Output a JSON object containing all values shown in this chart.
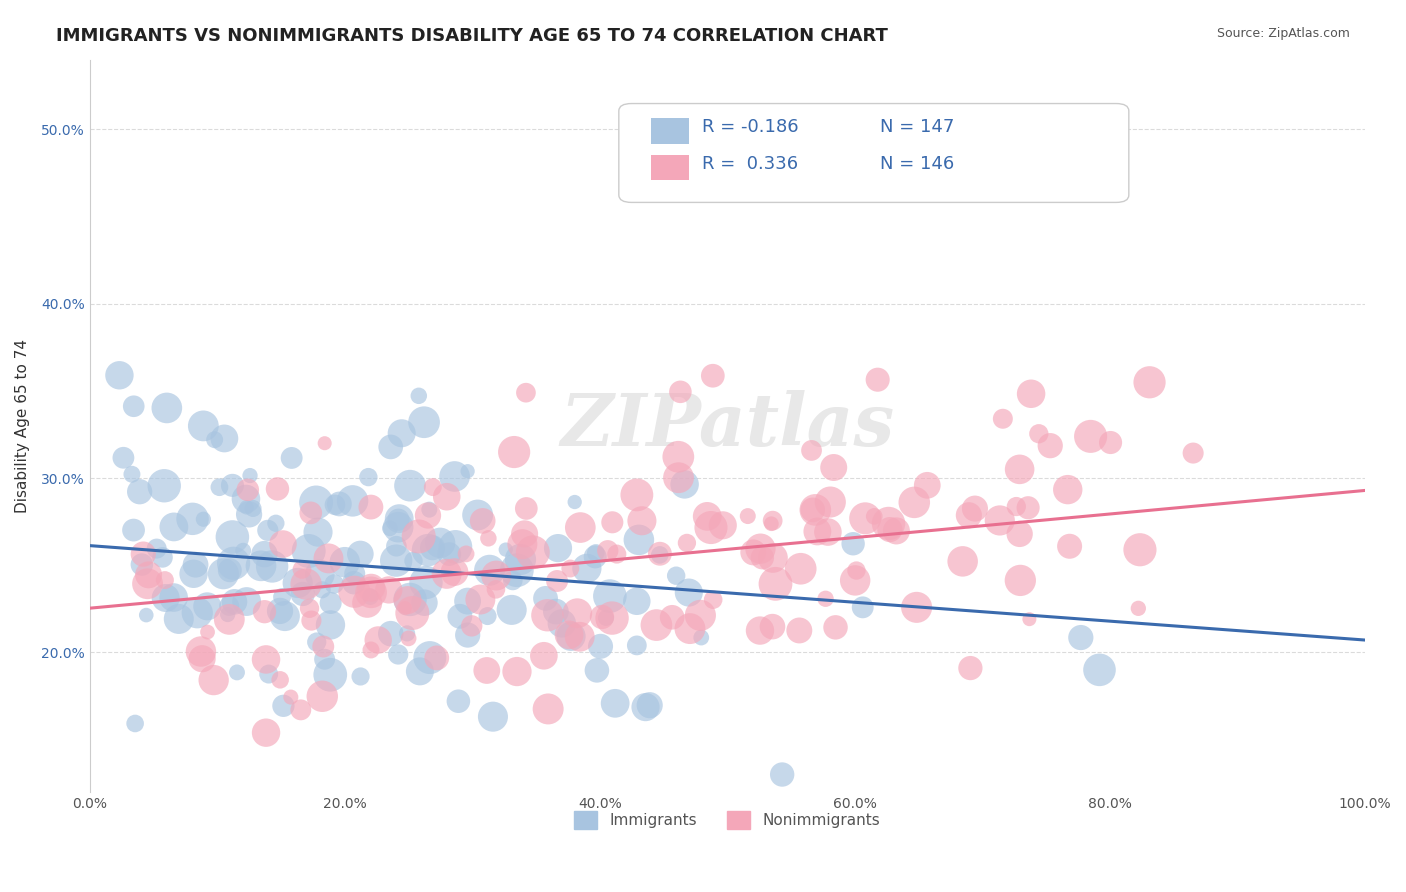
{
  "title": "IMMIGRANTS VS NONIMMIGRANTS DISABILITY AGE 65 TO 74 CORRELATION CHART",
  "source": "Source: ZipAtlas.com",
  "xlabel": "",
  "ylabel": "Disability Age 65 to 74",
  "xlim": [
    0,
    1
  ],
  "ylim": [
    0.12,
    0.54
  ],
  "xticks": [
    0.0,
    0.2,
    0.4,
    0.6,
    0.8,
    1.0
  ],
  "xtick_labels": [
    "0.0%",
    "20.0%",
    "40.0%",
    "60.0%",
    "80.0%",
    "100.0%"
  ],
  "ytick_labels": [
    "20.0%",
    "30.0%",
    "40.0%",
    "50.0%"
  ],
  "yticks": [
    0.2,
    0.3,
    0.4,
    0.5
  ],
  "immigrant_color": "#a8c4e0",
  "nonimmigrant_color": "#f4a7b9",
  "immigrant_line_color": "#3a6aad",
  "nonimmigrant_line_color": "#e87090",
  "R_immigrant": -0.186,
  "N_immigrant": 147,
  "R_nonimmigrant": 0.336,
  "N_nonimmigrant": 146,
  "legend_R_color": "#3a6aad",
  "legend_N_color": "#3a6aad",
  "watermark": "ZIPatlas",
  "background_color": "#ffffff",
  "grid_color": "#cccccc",
  "title_fontsize": 13,
  "axis_label_fontsize": 11,
  "tick_fontsize": 10,
  "legend_fontsize": 13
}
